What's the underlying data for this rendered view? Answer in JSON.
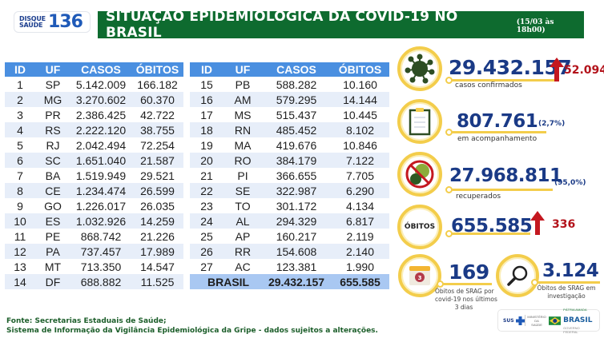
{
  "header": {
    "logo_top": "DISQUE",
    "logo_bottom": "SAÚDE",
    "logo_number": "136",
    "title": "SITUAÇÃO EPIDEMIOLÓGICA DA COVID-19 NO BRASIL",
    "date": "(15/03 às 18h00)"
  },
  "table": {
    "columns": [
      "ID",
      "UF",
      "CASOS",
      "ÓBITOS"
    ],
    "left_rows": [
      [
        "1",
        "SP",
        "5.142.009",
        "166.182"
      ],
      [
        "2",
        "MG",
        "3.270.602",
        "60.370"
      ],
      [
        "3",
        "PR",
        "2.386.425",
        "42.722"
      ],
      [
        "4",
        "RS",
        "2.222.120",
        "38.755"
      ],
      [
        "5",
        "RJ",
        "2.042.494",
        "72.254"
      ],
      [
        "6",
        "SC",
        "1.651.040",
        "21.587"
      ],
      [
        "7",
        "BA",
        "1.519.949",
        "29.521"
      ],
      [
        "8",
        "CE",
        "1.234.474",
        "26.599"
      ],
      [
        "9",
        "GO",
        "1.226.017",
        "26.035"
      ],
      [
        "10",
        "ES",
        "1.032.926",
        "14.259"
      ],
      [
        "11",
        "PE",
        "868.742",
        "21.226"
      ],
      [
        "12",
        "PA",
        "737.457",
        "17.989"
      ],
      [
        "13",
        "MT",
        "713.350",
        "14.547"
      ],
      [
        "14",
        "DF",
        "688.882",
        "11.525"
      ]
    ],
    "right_rows": [
      [
        "15",
        "PB",
        "588.282",
        "10.160"
      ],
      [
        "16",
        "AM",
        "579.295",
        "14.144"
      ],
      [
        "17",
        "MS",
        "515.437",
        "10.445"
      ],
      [
        "18",
        "RN",
        "485.452",
        "8.102"
      ],
      [
        "19",
        "MA",
        "419.676",
        "10.846"
      ],
      [
        "20",
        "RO",
        "384.179",
        "7.122"
      ],
      [
        "21",
        "PI",
        "366.655",
        "7.705"
      ],
      [
        "22",
        "SE",
        "322.987",
        "6.290"
      ],
      [
        "23",
        "TO",
        "301.172",
        "4.134"
      ],
      [
        "24",
        "AL",
        "294.329",
        "6.817"
      ],
      [
        "25",
        "AP",
        "160.217",
        "2.119"
      ],
      [
        "26",
        "RR",
        "154.608",
        "2.140"
      ],
      [
        "27",
        "AC",
        "123.381",
        "1.990"
      ]
    ],
    "total": {
      "label": "BRASIL",
      "casos": "29.432.157",
      "obitos": "655.585"
    }
  },
  "stats": {
    "confirmed": {
      "value": "29.432.157",
      "label": "casos confirmados",
      "delta": "52.094",
      "icon": "virus-icon"
    },
    "monitoring": {
      "value": "807.761",
      "pct": "(2,7%)",
      "label": "em acompanhamento",
      "icon": "clipboard-icon"
    },
    "recovered": {
      "value": "27.968.811",
      "pct": "(95,0%)",
      "label": "recuperados",
      "icon": "no-virus-icon"
    },
    "deaths": {
      "badge": "ÓBITOS",
      "value": "655.585",
      "delta": "336"
    },
    "srag_recent": {
      "value": "169",
      "label_1": "Óbitos de SRAG por",
      "label_2": "covid-19 nos últimos",
      "label_3": "3 dias",
      "calendar_num": "3",
      "icon": "calendar-icon"
    },
    "srag_investigation": {
      "value": "3.124",
      "label_1": "Óbitos de SRAG em",
      "label_2": "investigação",
      "icon": "magnifier-icon"
    }
  },
  "footer": {
    "line1": "Fonte: Secretarias Estaduais de Saúde;",
    "line2": "Sistema de Informação da Vigilância Epidemiológica da Gripe - dados sujeitos a alterações."
  },
  "partners": {
    "sus": "SUS",
    "ministry_1": "MINISTÉRIO DA",
    "ministry_2": "SAÚDE",
    "brasil_top": "PÁTRIA AMADA",
    "brasil": "BRASIL",
    "brasil_sub": "GOVERNO FEDERAL"
  },
  "colors": {
    "title_green": "#0e6b2f",
    "table_header": "#4a8fe0",
    "row_stripe": "#e7eef9",
    "total_row": "#a9c8f2",
    "number_blue": "#1a3a86",
    "ring_yellow": "#f3cd4b",
    "increase_red": "#b3131b",
    "footer_green": "#1c5e2a"
  }
}
